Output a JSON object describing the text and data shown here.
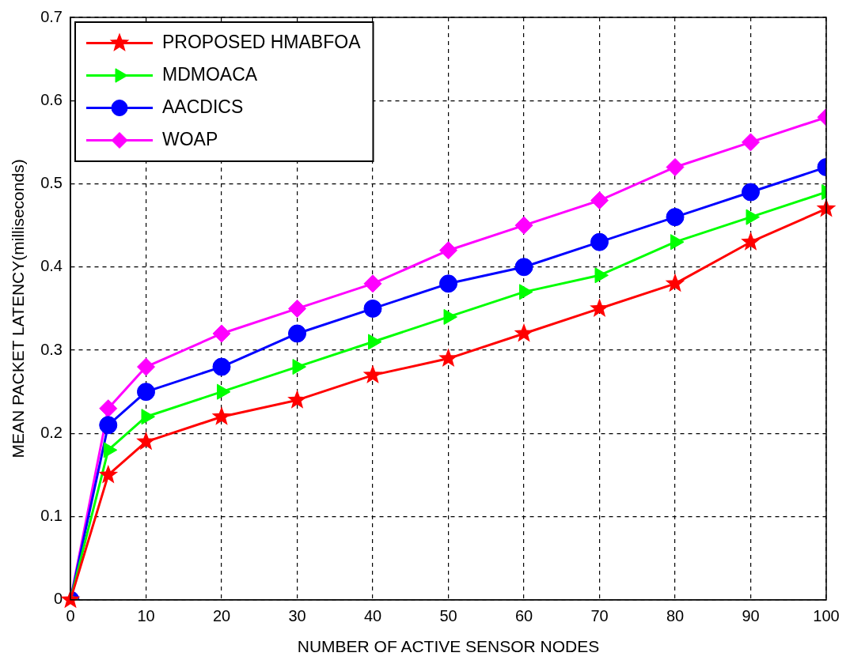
{
  "chart_data": {
    "type": "line",
    "xlabel": "NUMBER OF ACTIVE SENSOR NODES",
    "ylabel": "MEAN PACKET LATENCY(milliseconds)",
    "x": [
      0,
      5,
      10,
      20,
      30,
      40,
      50,
      60,
      70,
      80,
      90,
      100
    ],
    "xlim": [
      0,
      100
    ],
    "xticks": [
      0,
      10,
      20,
      30,
      40,
      50,
      60,
      70,
      80,
      90,
      100
    ],
    "ylim": [
      0,
      0.7
    ],
    "yticks": [
      0,
      0.1,
      0.2,
      0.3,
      0.4,
      0.5,
      0.6,
      0.7
    ],
    "grid": true,
    "legend": "top left",
    "line_style": "solid",
    "series": [
      {
        "name": "PROPOSED HMABFOA",
        "color": "#ff0000",
        "marker": "star",
        "values": [
          0,
          0.15,
          0.19,
          0.22,
          0.24,
          0.27,
          0.29,
          0.32,
          0.35,
          0.38,
          0.43,
          0.47
        ]
      },
      {
        "name": "MDMOACA",
        "color": "#00ff00",
        "marker": "triangle",
        "values": [
          0,
          0.18,
          0.22,
          0.25,
          0.28,
          0.31,
          0.34,
          0.37,
          0.39,
          0.43,
          0.46,
          0.49
        ]
      },
      {
        "name": "AACDICS",
        "color": "#0000ff",
        "marker": "circle",
        "values": [
          0,
          0.21,
          0.25,
          0.28,
          0.32,
          0.35,
          0.38,
          0.4,
          0.43,
          0.46,
          0.49,
          0.52
        ]
      },
      {
        "name": "WOAP",
        "color": "#ff00ff",
        "marker": "diamond",
        "values": [
          0,
          0.23,
          0.28,
          0.32,
          0.35,
          0.38,
          0.42,
          0.45,
          0.48,
          0.52,
          0.55,
          0.58
        ]
      }
    ]
  }
}
